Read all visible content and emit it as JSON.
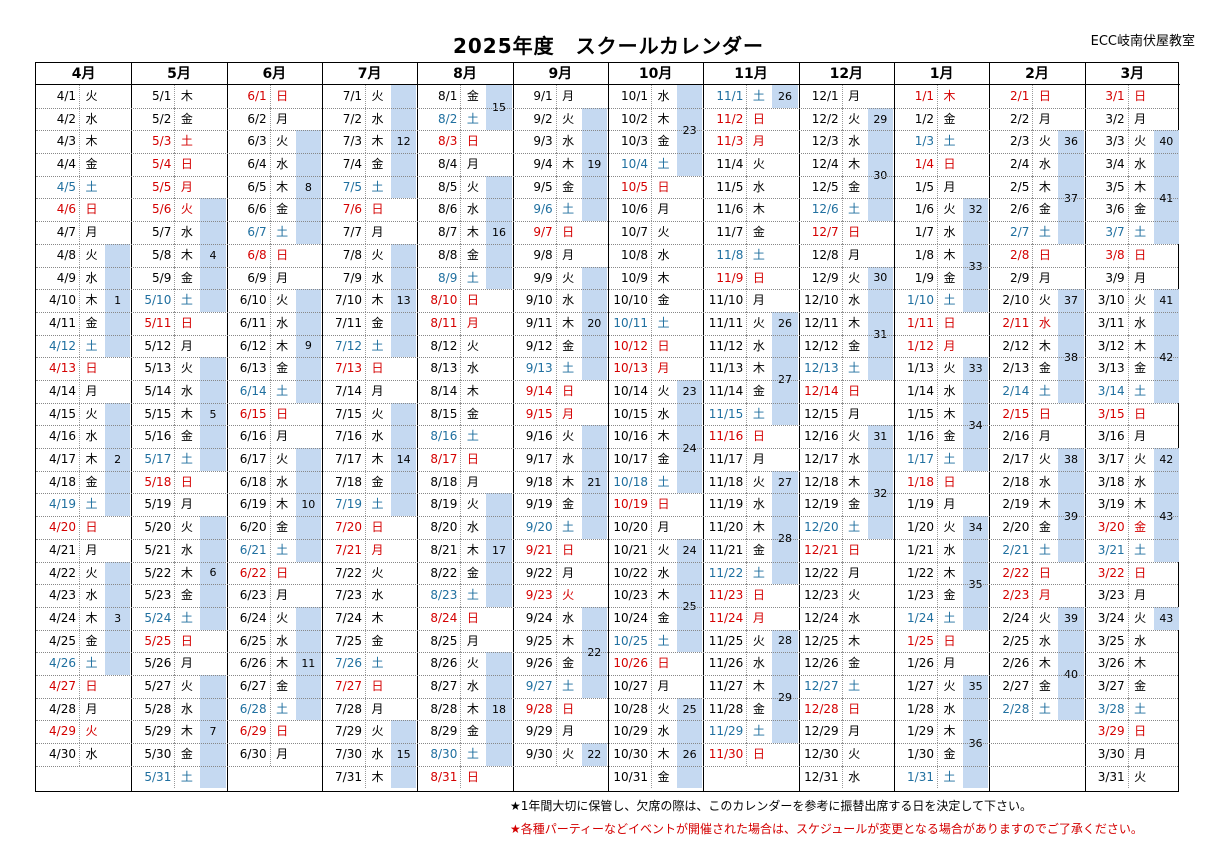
{
  "title": "2025年度　スクールカレンダー",
  "school": "ECC岐南伏屋教室",
  "notes": [
    "★1年間大切に保管し、欠席の際は、このカレンダーを参考に振替出席する日を決定して下さい。",
    "★各種パーティーなどイベントが開催された場合は、スケジュールが変更となる場合がありますのでご了承ください。"
  ],
  "colors": {
    "week_band": "#c5d9f1",
    "holiday": "#d40000",
    "saturday": "#1f6f9f"
  },
  "months": [
    {
      "label": "4月",
      "m": 4,
      "days": 30,
      "start_dow": 2,
      "holidays": [
        29
      ],
      "weeks": [
        {
          "no": "1",
          "from": 8,
          "to": 12
        },
        {
          "no": "2",
          "from": 15,
          "to": 19
        },
        {
          "no": "3",
          "from": 22,
          "to": 26
        }
      ]
    },
    {
      "label": "5月",
      "m": 5,
      "days": 31,
      "start_dow": 4,
      "holidays": [
        3,
        4,
        5,
        6
      ],
      "weeks": [
        {
          "no": "4",
          "from": 6,
          "to": 10
        },
        {
          "no": "5",
          "from": 13,
          "to": 17
        },
        {
          "no": "6",
          "from": 20,
          "to": 24
        },
        {
          "no": "7",
          "from": 27,
          "to": 31
        }
      ]
    },
    {
      "label": "6月",
      "m": 6,
      "days": 30,
      "start_dow": 0,
      "holidays": [],
      "weeks": [
        {
          "no": "8",
          "from": 3,
          "to": 7
        },
        {
          "no": "9",
          "from": 10,
          "to": 14
        },
        {
          "no": "10",
          "from": 17,
          "to": 21
        },
        {
          "no": "11",
          "from": 24,
          "to": 28
        }
      ]
    },
    {
      "label": "7月",
      "m": 7,
      "days": 31,
      "start_dow": 2,
      "holidays": [
        21
      ],
      "weeks": [
        {
          "no": "12",
          "from": 1,
          "to": 5
        },
        {
          "no": "13",
          "from": 8,
          "to": 12
        },
        {
          "no": "14",
          "from": 15,
          "to": 19
        },
        {
          "no": "15",
          "from": 29,
          "to": 31
        }
      ]
    },
    {
      "label": "8月",
      "m": 8,
      "days": 31,
      "start_dow": 5,
      "holidays": [
        3,
        10,
        11,
        17,
        24,
        31
      ],
      "weeks": [
        {
          "no": "15",
          "from": 1,
          "to": 2
        },
        {
          "no": "16",
          "from": 5,
          "to": 9
        },
        {
          "no": "17",
          "from": 19,
          "to": 23
        },
        {
          "no": "18",
          "from": 26,
          "to": 30
        }
      ]
    },
    {
      "label": "9月",
      "m": 9,
      "days": 30,
      "start_dow": 1,
      "holidays": [
        7,
        14,
        15,
        21,
        23,
        28
      ],
      "weeks": [
        {
          "no": "19",
          "from": 2,
          "to": 6
        },
        {
          "no": "20",
          "from": 9,
          "to": 13
        },
        {
          "no": "21",
          "from": 16,
          "to": 20
        },
        {
          "no": "22",
          "from": 24,
          "to": 27
        },
        {
          "no": "22",
          "from": 30,
          "to": 30
        }
      ]
    },
    {
      "label": "10月",
      "m": 10,
      "days": 31,
      "start_dow": 3,
      "holidays": [
        5,
        12,
        13,
        19,
        26
      ],
      "weeks": [
        {
          "no": "23",
          "from": 1,
          "to": 4
        },
        {
          "no": "23",
          "from": 14,
          "to": 14
        },
        {
          "no": "24",
          "from": 15,
          "to": 18
        },
        {
          "no": "24",
          "from": 21,
          "to": 21
        },
        {
          "no": "25",
          "from": 22,
          "to": 25
        },
        {
          "no": "25",
          "from": 28,
          "to": 28
        },
        {
          "no": "26",
          "from": 29,
          "to": 31
        }
      ]
    },
    {
      "label": "11月",
      "m": 11,
      "days": 30,
      "start_dow": 6,
      "holidays": [
        2,
        3,
        9,
        16,
        23,
        24,
        30
      ],
      "weeks": [
        {
          "no": "26",
          "from": 1,
          "to": 1
        },
        {
          "no": "26",
          "from": 11,
          "to": 11
        },
        {
          "no": "27",
          "from": 12,
          "to": 15
        },
        {
          "no": "27",
          "from": 18,
          "to": 18
        },
        {
          "no": "28",
          "from": 19,
          "to": 22
        },
        {
          "no": "28",
          "from": 25,
          "to": 25
        },
        {
          "no": "29",
          "from": 26,
          "to": 29
        }
      ]
    },
    {
      "label": "12月",
      "m": 12,
      "days": 31,
      "start_dow": 1,
      "holidays": [
        7,
        14,
        21,
        28
      ],
      "weeks": [
        {
          "no": "29",
          "from": 2,
          "to": 2
        },
        {
          "no": "30",
          "from": 3,
          "to": 6
        },
        {
          "no": "30",
          "from": 9,
          "to": 9
        },
        {
          "no": "31",
          "from": 10,
          "to": 13
        },
        {
          "no": "31",
          "from": 16,
          "to": 16
        },
        {
          "no": "32",
          "from": 17,
          "to": 20
        }
      ]
    },
    {
      "label": "1月",
      "m": 1,
      "days": 31,
      "start_dow": 4,
      "holidays": [
        1,
        4,
        11,
        12,
        18,
        25
      ],
      "weeks": [
        {
          "no": "32",
          "from": 6,
          "to": 6
        },
        {
          "no": "33",
          "from": 7,
          "to": 10
        },
        {
          "no": "33",
          "from": 13,
          "to": 13
        },
        {
          "no": "34",
          "from": 14,
          "to": 17
        },
        {
          "no": "34",
          "from": 20,
          "to": 20
        },
        {
          "no": "35",
          "from": 21,
          "to": 24
        },
        {
          "no": "35",
          "from": 27,
          "to": 27
        },
        {
          "no": "36",
          "from": 28,
          "to": 31
        }
      ]
    },
    {
      "label": "2月",
      "m": 2,
      "days": 28,
      "start_dow": 0,
      "holidays": [
        1,
        8,
        11,
        15,
        22,
        23
      ],
      "weeks": [
        {
          "no": "36",
          "from": 3,
          "to": 3
        },
        {
          "no": "37",
          "from": 4,
          "to": 7
        },
        {
          "no": "37",
          "from": 10,
          "to": 10
        },
        {
          "no": "38",
          "from": 11,
          "to": 14
        },
        {
          "no": "38",
          "from": 17,
          "to": 17
        },
        {
          "no": "39",
          "from": 18,
          "to": 21
        },
        {
          "no": "39",
          "from": 24,
          "to": 24
        },
        {
          "no": "40",
          "from": 25,
          "to": 28
        }
      ]
    },
    {
      "label": "3月",
      "m": 3,
      "days": 31,
      "start_dow": 0,
      "holidays": [
        1,
        8,
        15,
        20,
        22,
        29
      ],
      "weeks": [
        {
          "no": "40",
          "from": 3,
          "to": 3
        },
        {
          "no": "41",
          "from": 4,
          "to": 7
        },
        {
          "no": "41",
          "from": 10,
          "to": 10
        },
        {
          "no": "42",
          "from": 11,
          "to": 14
        },
        {
          "no": "42",
          "from": 17,
          "to": 17
        },
        {
          "no": "43",
          "from": 18,
          "to": 21
        },
        {
          "no": "43",
          "from": 24,
          "to": 24
        }
      ]
    }
  ],
  "weekdays": [
    "日",
    "月",
    "火",
    "水",
    "木",
    "金",
    "土"
  ]
}
